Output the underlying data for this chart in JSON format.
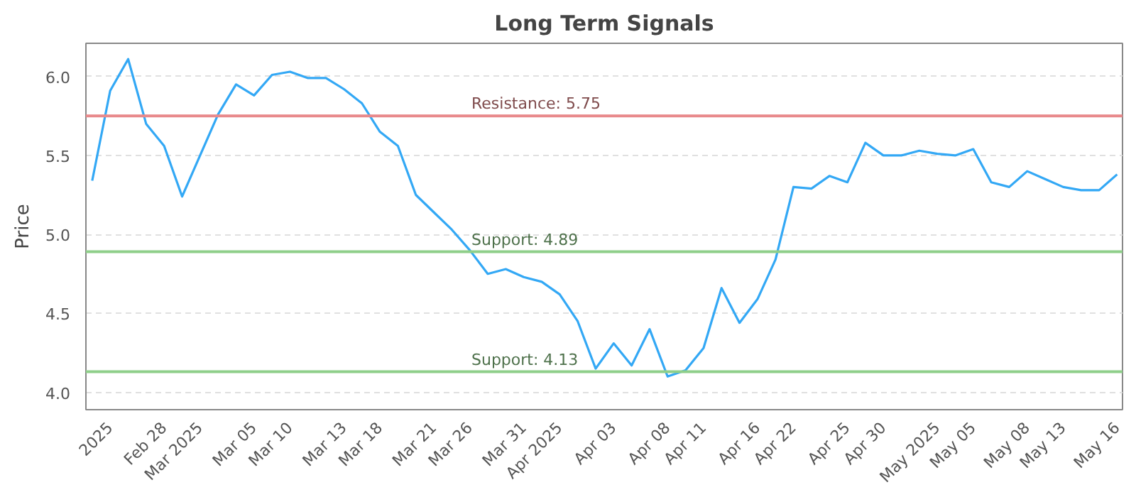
{
  "chart_data": {
    "type": "line",
    "title": "Long Term Signals",
    "ylabel": "Price",
    "categories": [
      null,
      "2025",
      null,
      null,
      "Feb 28",
      null,
      "Mar 2025",
      null,
      null,
      "Mar 05",
      null,
      "Mar 10",
      null,
      null,
      "Mar 13",
      null,
      "Mar 18",
      null,
      null,
      "Mar 21",
      null,
      "Mar 26",
      null,
      null,
      "Mar 31",
      null,
      "Apr 2025",
      null,
      null,
      "Apr 03",
      null,
      null,
      "Apr 08",
      null,
      "Apr 11",
      null,
      null,
      "Apr 16",
      null,
      "Apr 22",
      null,
      null,
      "Apr 25",
      null,
      "Apr 30",
      null,
      null,
      "May 2025",
      null,
      "May 05",
      null,
      null,
      "May 08",
      null,
      "May 13",
      null,
      null,
      "May 16"
    ],
    "series": [
      {
        "color": "#33a8f5",
        "values": [
          5.34,
          5.91,
          6.11,
          5.7,
          5.56,
          5.24,
          5.5,
          5.76,
          5.95,
          5.88,
          6.01,
          6.03,
          5.99,
          5.99,
          5.92,
          5.83,
          5.65,
          5.56,
          5.25,
          5.14,
          5.03,
          4.9,
          4.75,
          4.78,
          4.73,
          4.7,
          4.62,
          4.45,
          4.15,
          4.31,
          4.17,
          4.4,
          4.1,
          4.14,
          4.28,
          4.66,
          4.44,
          4.59,
          4.84,
          5.3,
          5.29,
          5.37,
          5.33,
          5.58,
          5.5,
          5.5,
          5.53,
          5.51,
          5.5,
          5.54,
          5.33,
          5.3,
          5.4,
          5.35,
          5.3,
          5.28,
          5.28,
          5.38
        ]
      }
    ],
    "ylim": [
      3.89,
      6.21
    ],
    "yticks": [
      {
        "value": 4,
        "label": "4.0"
      },
      {
        "value": 4.5,
        "label": "4.5"
      },
      {
        "value": 5,
        "label": "5.0"
      },
      {
        "value": 5.5,
        "label": "5.5"
      },
      {
        "value": 6,
        "label": "6.0"
      }
    ],
    "grid": "y",
    "marker": "none",
    "line_style": "solid",
    "ref_lines": [
      {
        "axis": "y",
        "value": 5.75,
        "label": "Resistance: 5.75",
        "color": "#e8898b"
      },
      {
        "axis": "y",
        "value": 4.89,
        "label": "Support: 4.89",
        "color": "#8fcf8a"
      },
      {
        "axis": "y",
        "value": 4.13,
        "label": "Support: 4.13",
        "color": "#8fcf8a"
      }
    ]
  }
}
